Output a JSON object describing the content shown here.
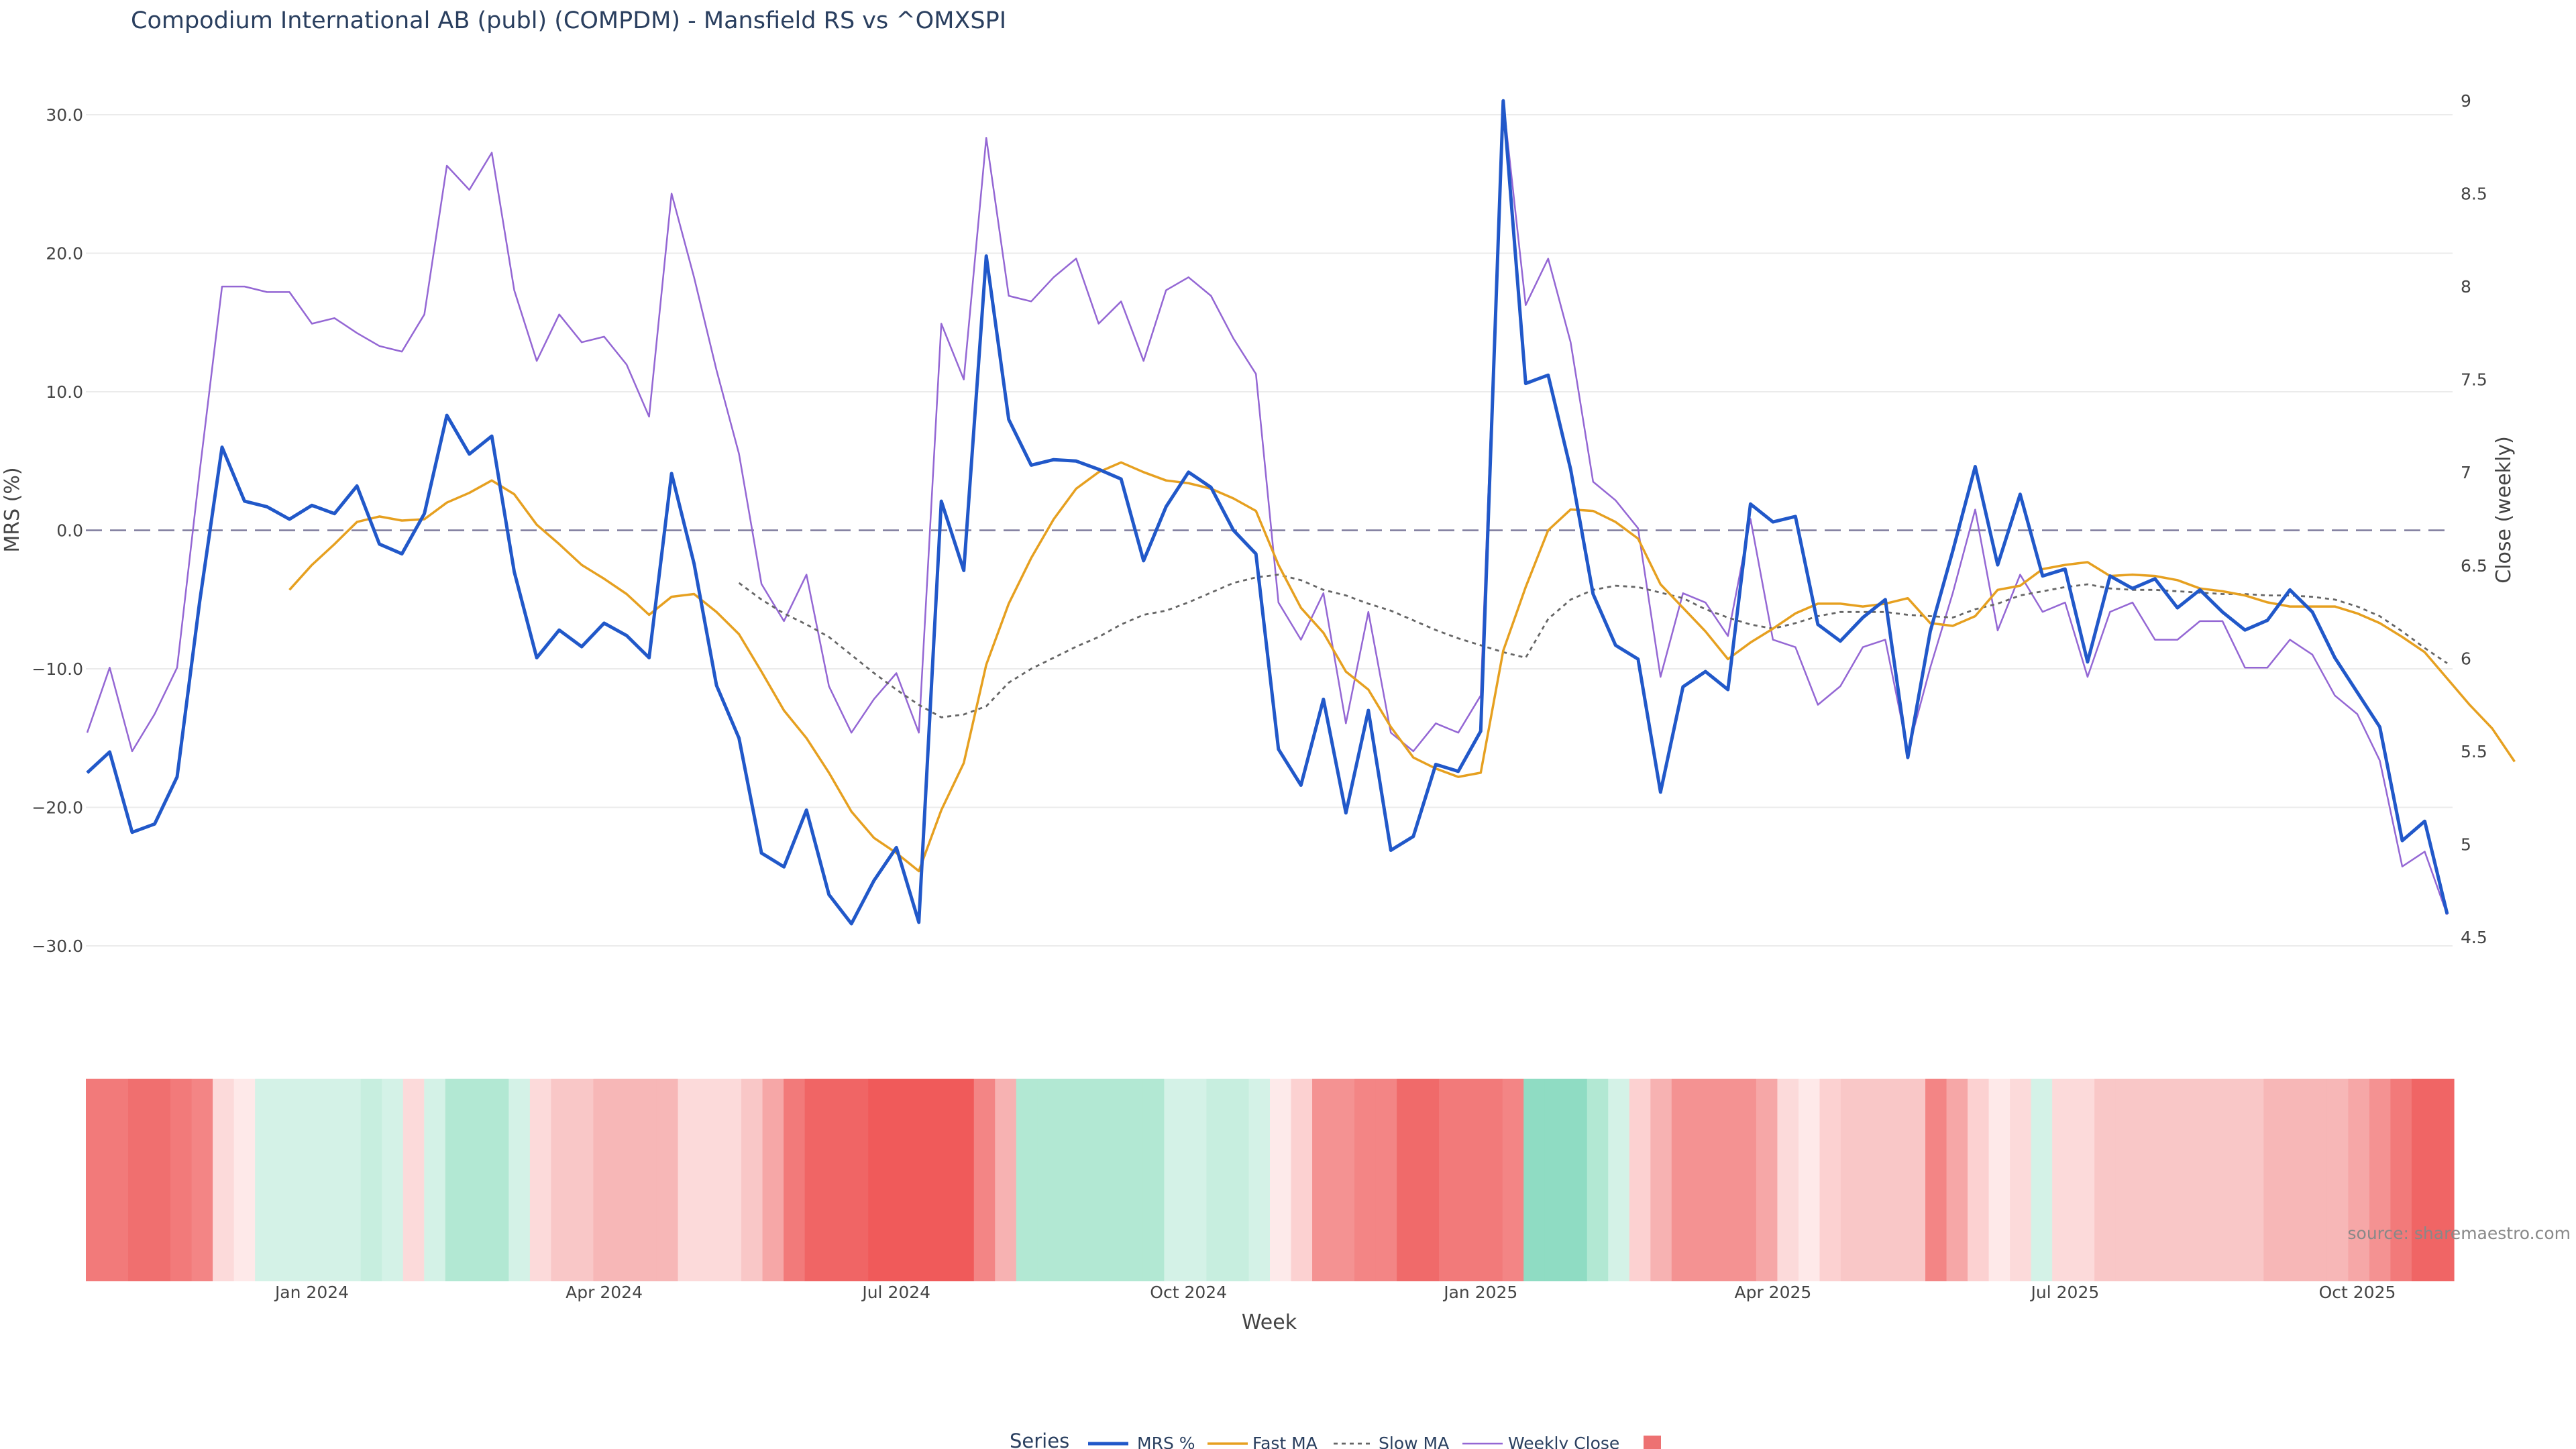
{
  "chart_data": {
    "type": "line",
    "title": "Compodium International AB (publ) (COMPDM) - Mansfield RS vs ^OMXSPI",
    "xlabel": "Week",
    "ylabel_left": "MRS (%)",
    "ylabel_right": "Close (weekly)",
    "source": "source: sharemaestro.com",
    "legend_title": "Series",
    "legend_placement": "bottom-center",
    "x_ticks": [
      "Jan 2024",
      "Apr 2024",
      "Jul 2024",
      "Oct 2024",
      "Jan 2025",
      "Apr 2025",
      "Jul 2025",
      "Oct 2025"
    ],
    "y_left_ticks": [
      "30.0",
      "20.0",
      "10.0",
      "0.0",
      "−10.0",
      "−20.0",
      "−30.0"
    ],
    "y_right_ticks": [
      "9",
      "8.5",
      "8",
      "7.5",
      "7",
      "6.5",
      "6",
      "5.5",
      "5",
      "4.5"
    ],
    "y_left_range": [
      -33,
      32.5
    ],
    "y_right_range": [
      4.3,
      9.2
    ],
    "zero_line": 0,
    "series": [
      {
        "name": "MRS %",
        "color": "#2158c9",
        "axis": "left",
        "start_index": 0,
        "values": [
          -17.5,
          -16,
          -21.8,
          -21.2,
          -17.8,
          -5.2,
          6,
          2.1,
          1.7,
          0.8,
          1.8,
          1.2,
          3.2,
          -1,
          -1.7,
          1.2,
          8.3,
          5.5,
          6.8,
          -3,
          -9.2,
          -7.2,
          -8.4,
          -6.7,
          -7.6,
          -9.2,
          4.1,
          -2.4,
          -11.2,
          -15,
          -23.3,
          -24.3,
          -20.2,
          -26.3,
          -28.4,
          -25.3,
          -22.9,
          -28.3,
          2.1,
          -2.9,
          19.8,
          8,
          4.7,
          5.1,
          5,
          4.4,
          3.7,
          -2.2,
          1.7,
          4.2,
          3.1,
          0,
          -1.7,
          -15.8,
          -18.4,
          -12.2,
          -20.4,
          -13,
          -23.1,
          -22.1,
          -16.9,
          -17.4,
          -14.5,
          31,
          10.6,
          11.2,
          4.4,
          -4.6,
          -8.3,
          -9.3,
          -18.9,
          -11.3,
          -10.2,
          -11.5,
          1.9,
          0.6,
          1,
          -6.8,
          -8,
          -6.3,
          -5,
          -16.4,
          -7.3,
          -1.5,
          4.6,
          -2.5,
          2.6,
          -3.3,
          -2.8,
          -9.5,
          -3.3,
          -4.2,
          -3.5,
          -5.6,
          -4.3,
          -5.9,
          -7.2,
          -6.5,
          -4.3,
          -5.9,
          -9.2,
          -11.7,
          -14.2,
          -22.4,
          -21,
          -27.7
        ]
      },
      {
        "name": "Fast MA",
        "color": "#e6a020",
        "axis": "left",
        "start_index": 9,
        "values": [
          -4.3,
          -2.5,
          -1,
          0.6,
          1,
          0.7,
          0.8,
          2,
          2.7,
          3.6,
          2.6,
          0.4,
          -1,
          -2.5,
          -3.5,
          -4.6,
          -6.1,
          -4.8,
          -4.6,
          -5.9,
          -7.5,
          -10.2,
          -13,
          -15,
          -17.5,
          -20.3,
          -22.2,
          -23.3,
          -24.6,
          -20.2,
          -16.8,
          -9.7,
          -5.3,
          -2,
          0.8,
          3,
          4.2,
          4.9,
          4.2,
          3.6,
          3.4,
          3,
          2.3,
          1.4,
          -2.5,
          -5.6,
          -7.4,
          -10.2,
          -11.5,
          -14.2,
          -16.4,
          -17.2,
          -17.8,
          -17.5,
          -8.7,
          -4.1,
          0,
          1.5,
          1.4,
          0.6,
          -0.6,
          -3.9,
          -5.6,
          -7.3,
          -9.3,
          -8.1,
          -7.1,
          -6,
          -5.3,
          -5.3,
          -5.5,
          -5.3,
          -4.9,
          -6.7,
          -6.9,
          -6.2,
          -4.3,
          -4,
          -2.8,
          -2.5,
          -2.3,
          -3.3,
          -3.2,
          -3.3,
          -3.6,
          -4.2,
          -4.4,
          -4.7,
          -5.2,
          -5.5,
          -5.5,
          -5.5,
          -6,
          -6.7,
          -7.7,
          -8.8,
          -10.7,
          -12.6,
          -14.3,
          -16.7
        ]
      },
      {
        "name": "Slow MA",
        "color": "#666666",
        "axis": "left",
        "dash": true,
        "start_index": 29,
        "values": [
          -3.8,
          -5,
          -6,
          -6.8,
          -7.7,
          -9,
          -10.3,
          -11.5,
          -12.6,
          -13.5,
          -13.3,
          -12.7,
          -11,
          -10,
          -9.2,
          -8.4,
          -7.7,
          -6.8,
          -6.1,
          -5.8,
          -5.2,
          -4.5,
          -3.8,
          -3.4,
          -3.2,
          -3.6,
          -4.3,
          -4.7,
          -5.3,
          -5.8,
          -6.5,
          -7.2,
          -7.8,
          -8.3,
          -8.8,
          -9.2,
          -6.4,
          -5,
          -4.3,
          -4,
          -4.1,
          -4.5,
          -4.9,
          -5.7,
          -6.3,
          -6.8,
          -7.1,
          -6.7,
          -6.2,
          -5.9,
          -5.9,
          -5.9,
          -6.1,
          -6.2,
          -6.3,
          -5.7,
          -5.3,
          -4.7,
          -4.4,
          -4.1,
          -3.9,
          -4.2,
          -4.3,
          -4.3,
          -4.4,
          -4.5,
          -4.6,
          -4.6,
          -4.7,
          -4.7,
          -4.8,
          -5,
          -5.5,
          -6.2,
          -7.3,
          -8.5,
          -9.6
        ]
      },
      {
        "name": "Weekly Close",
        "color": "#9467d4",
        "axis": "right",
        "start_index": 0,
        "values": [
          5.6,
          5.95,
          5.5,
          5.7,
          5.95,
          7,
          8,
          8,
          7.97,
          7.97,
          7.8,
          7.83,
          7.75,
          7.68,
          7.65,
          7.85,
          8.65,
          8.52,
          8.72,
          7.98,
          7.6,
          7.85,
          7.7,
          7.73,
          7.58,
          7.3,
          8.5,
          8.05,
          7.55,
          7.1,
          6.4,
          6.2,
          6.45,
          5.85,
          5.6,
          5.78,
          5.92,
          5.6,
          7.8,
          7.5,
          8.8,
          7.95,
          7.92,
          8.05,
          8.15,
          7.8,
          7.92,
          7.6,
          7.98,
          8.05,
          7.95,
          7.72,
          7.53,
          6.3,
          6.1,
          6.35,
          5.65,
          6.25,
          5.6,
          5.5,
          5.65,
          5.6,
          5.8,
          9,
          7.9,
          8.15,
          7.7,
          6.95,
          6.85,
          6.7,
          5.9,
          6.35,
          6.3,
          6.12,
          6.75,
          6.1,
          6.06,
          5.75,
          5.85,
          6.06,
          6.1,
          5.5,
          5.95,
          6.35,
          6.8,
          6.15,
          6.45,
          6.25,
          6.3,
          5.9,
          6.25,
          6.3,
          6.1,
          6.1,
          6.2,
          6.2,
          5.95,
          5.95,
          6.1,
          6.02,
          5.8,
          5.7,
          5.45,
          4.88,
          4.96,
          4.62
        ]
      }
    ],
    "heatmap": {
      "name": "",
      "color": "#ed7172",
      "colors": [
        "#f27a7a",
        "#f27a7a",
        "#f06f6f",
        "#f06f6f",
        "#f27a7a",
        "#f38585",
        "#fcdada",
        "#fee9e9",
        "#d4f2e7",
        "#d4f2e7",
        "#d4f2e7",
        "#d4f2e7",
        "#d4f2e7",
        "#c7eedf",
        "#d4f2e7",
        "#fcdada",
        "#d4f2e7",
        "#b2e8d3",
        "#b2e8d3",
        "#b2e8d3",
        "#d4f2e7",
        "#fcdada",
        "#f9c7c7",
        "#f9c7c7",
        "#f7b7b7",
        "#f7b7b7",
        "#f7b7b7",
        "#f7b7b7",
        "#fcdada",
        "#fcdada",
        "#fcdada",
        "#f9c7c7",
        "#f6a7a7",
        "#f27a7a",
        "#f06565",
        "#f06565",
        "#f06565",
        "#f05a5a",
        "#f05a5a",
        "#f05a5a",
        "#f05a5a",
        "#f05a5a",
        "#f38585",
        "#f7b2b2",
        "#b2e8d3",
        "#b2e8d3",
        "#b2e8d3",
        "#b2e8d3",
        "#b2e8d3",
        "#b2e8d3",
        "#b2e8d3",
        "#d4f2e7",
        "#d4f2e7",
        "#c7eedf",
        "#c7eedf",
        "#d4f2e7",
        "#fdeaea",
        "#fcd1d1",
        "#f49292",
        "#f49292",
        "#f38585",
        "#f38585",
        "#f06a6a",
        "#f06a6a",
        "#f27a7a",
        "#f27a7a",
        "#f27a7a",
        "#f38585",
        "#8fdcc3",
        "#8fdcc3",
        "#8fdcc3",
        "#b2e8d3",
        "#d4f2e7",
        "#fcd1d1",
        "#f7b2b2",
        "#f49292",
        "#f49292",
        "#f49292",
        "#f49292",
        "#f6a7a7",
        "#fcdada",
        "#fee9e9",
        "#fcd1d1",
        "#f9c7c7",
        "#f9c7c7",
        "#f9c7c7",
        "#f9c7c7",
        "#f38585",
        "#f6a7a7",
        "#fcd1d1",
        "#fee9e9",
        "#fcdada",
        "#d4f2e7",
        "#fcdada",
        "#fcdada",
        "#f9c7c7",
        "#f9c7c7",
        "#f9c7c7",
        "#f9c7c7",
        "#f9c7c7",
        "#f9c7c7",
        "#f9c7c7",
        "#f9c7c7",
        "#f7b7b7",
        "#f7b7b7",
        "#f7b7b7",
        "#f7b7b7",
        "#f6a7a7",
        "#f49292",
        "#f27a7a",
        "#f06565",
        "#f06565"
      ]
    }
  }
}
